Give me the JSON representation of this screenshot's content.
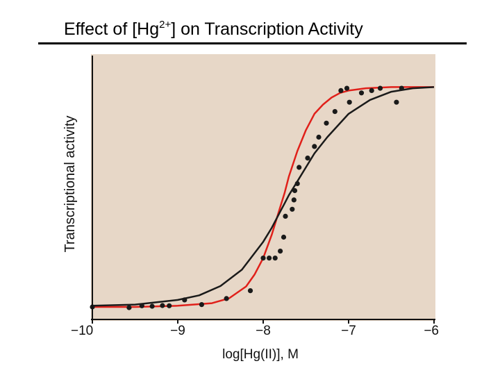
{
  "slide": {
    "title_before": "Effect of [Hg",
    "title_sup": "2+",
    "title_after": "] on Transcription Activity"
  },
  "chart_data": {
    "type": "scatter",
    "title": "",
    "xlabel": "log[Hg(II)], M",
    "ylabel": "Transcriptional activity",
    "xlim": [
      -10,
      -6
    ],
    "ylim": [
      0,
      1
    ],
    "x_ticks": [
      -10,
      -9,
      -8,
      -7,
      -6
    ],
    "x_tick_labels": [
      "−10",
      "−9",
      "−8",
      "−7",
      "−6"
    ],
    "grid": false,
    "legend": "none",
    "colors": {
      "background": "#e7d7c7",
      "red_curve": "#e0201a",
      "black_curve": "#1a1a1a",
      "points": "#1a1a1a",
      "axis": "#111111"
    },
    "series": [
      {
        "kind": "points",
        "x": [
          -10.0,
          -9.57,
          -9.42,
          -9.3,
          -9.18,
          -9.1,
          -8.92,
          -8.72,
          -8.43,
          -8.15,
          -8.0,
          -7.93,
          -7.86,
          -7.8,
          -7.76,
          -7.74,
          -7.66,
          -7.64,
          -7.63,
          -7.6,
          -7.58,
          -7.48,
          -7.4,
          -7.35,
          -7.26,
          -7.16,
          -7.09,
          -7.02,
          -6.99,
          -6.85,
          -6.73,
          -6.63,
          -6.44,
          -6.38
        ],
        "y": [
          0.0,
          -0.003,
          0.005,
          0.003,
          0.006,
          0.005,
          0.03,
          0.01,
          0.036,
          0.07,
          0.21,
          0.21,
          0.21,
          0.24,
          0.3,
          0.39,
          0.42,
          0.46,
          0.5,
          0.53,
          0.6,
          0.64,
          0.69,
          0.73,
          0.79,
          0.84,
          0.93,
          0.94,
          0.88,
          0.92,
          0.93,
          0.94,
          0.88,
          0.94
        ]
      },
      {
        "kind": "curve",
        "color": "red",
        "x": [
          -10.0,
          -9.5,
          -9.0,
          -8.6,
          -8.4,
          -8.2,
          -8.1,
          -8.0,
          -7.9,
          -7.8,
          -7.75,
          -7.7,
          -7.6,
          -7.5,
          -7.4,
          -7.3,
          -7.2,
          -7.1,
          -7.0,
          -6.8,
          -6.5,
          -6.0
        ],
        "y": [
          0.0,
          0.0,
          0.005,
          0.016,
          0.037,
          0.088,
          0.14,
          0.21,
          0.31,
          0.43,
          0.49,
          0.56,
          0.67,
          0.76,
          0.83,
          0.87,
          0.9,
          0.92,
          0.93,
          0.94,
          0.945,
          0.945
        ]
      },
      {
        "kind": "curve",
        "color": "black",
        "x": [
          -10.0,
          -9.5,
          -9.0,
          -8.75,
          -8.5,
          -8.25,
          -8.0,
          -7.9,
          -7.8,
          -7.75,
          -7.7,
          -7.6,
          -7.5,
          -7.4,
          -7.25,
          -7.0,
          -6.75,
          -6.5,
          -6.25,
          -6.0
        ],
        "y": [
          0.005,
          0.01,
          0.03,
          0.05,
          0.09,
          0.16,
          0.28,
          0.34,
          0.41,
          0.445,
          0.48,
          0.54,
          0.6,
          0.66,
          0.73,
          0.83,
          0.89,
          0.925,
          0.94,
          0.945
        ]
      }
    ]
  }
}
